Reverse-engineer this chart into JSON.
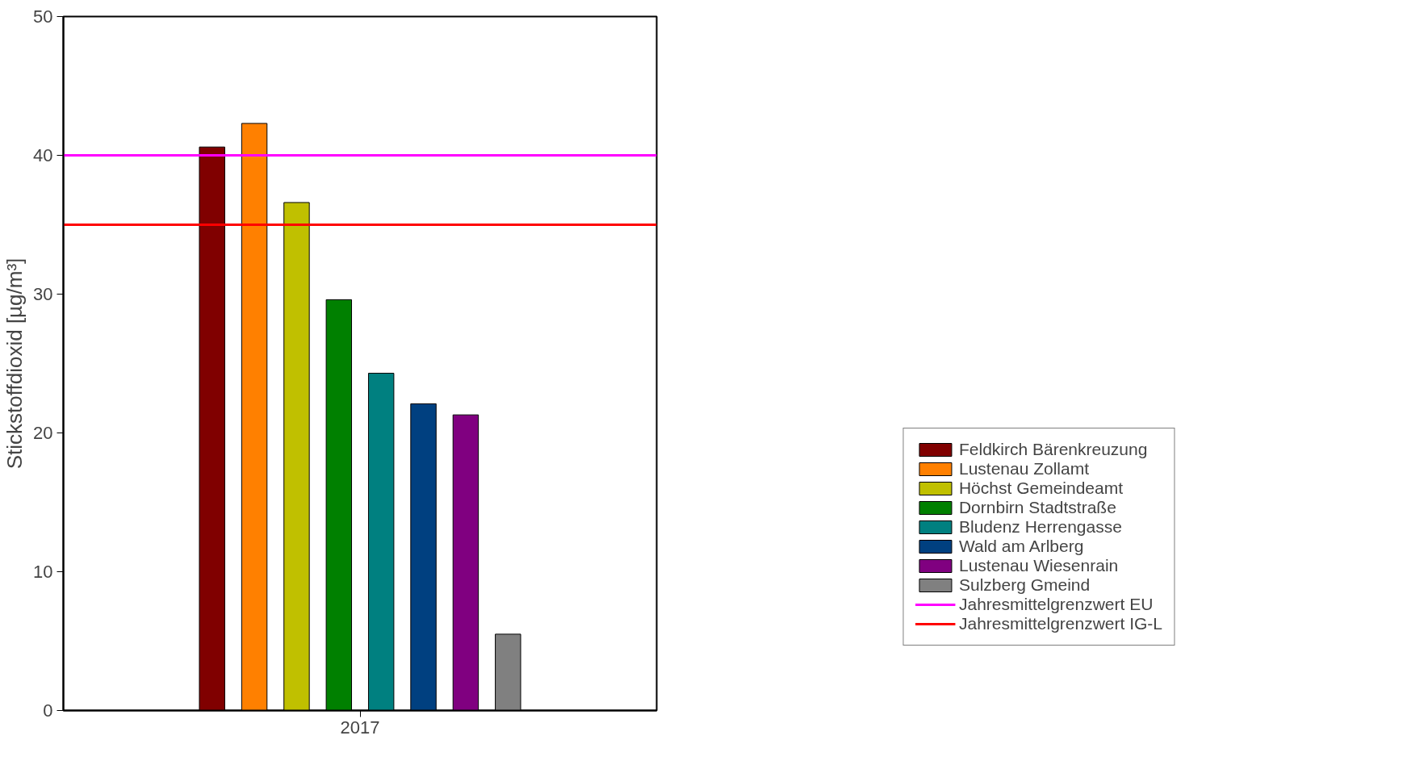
{
  "chart_data": {
    "type": "bar",
    "ylabel": "Stickstoffdioxid [µg/m³]",
    "categories": [
      "2017"
    ],
    "series": [
      {
        "name": "Feldkirch Bärenkreuzung",
        "color": "#800000",
        "values": [
          40.6
        ]
      },
      {
        "name": "Lustenau Zollamt",
        "color": "#ff8000",
        "values": [
          42.3
        ]
      },
      {
        "name": "Höchst Gemeindeamt",
        "color": "#c0c000",
        "values": [
          36.6
        ]
      },
      {
        "name": "Dornbirn Stadtstraße",
        "color": "#008000",
        "values": [
          29.6
        ]
      },
      {
        "name": "Bludenz Herrengasse",
        "color": "#008080",
        "values": [
          24.3
        ]
      },
      {
        "name": "Wald am Arlberg",
        "color": "#004080",
        "values": [
          22.1
        ]
      },
      {
        "name": "Lustenau Wiesenrain",
        "color": "#800080",
        "values": [
          21.3
        ]
      },
      {
        "name": "Sulzberg Gmeind",
        "color": "#808080",
        "values": [
          5.5
        ]
      }
    ],
    "ref_lines": [
      {
        "axis": "y",
        "value": 40,
        "label": "Jahresmittelgrenzwert EU",
        "color": "#ff00ff"
      },
      {
        "axis": "y",
        "value": 35,
        "label": "Jahresmittelgrenzwert IG-L",
        "color": "#ff0000"
      }
    ],
    "ylim": [
      0,
      50
    ],
    "yticks": [
      0,
      10,
      20,
      30,
      40,
      50
    ],
    "grid": false,
    "legend": "bottom right"
  }
}
